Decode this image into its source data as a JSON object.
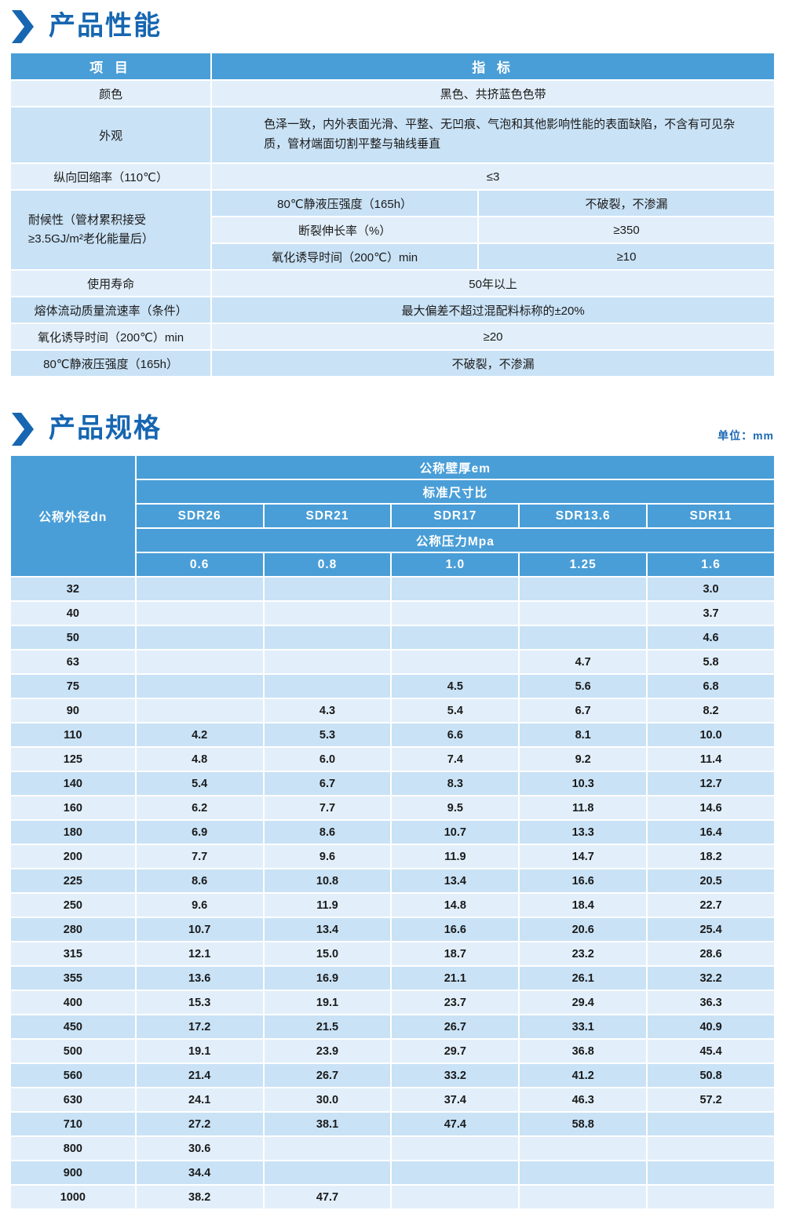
{
  "page": {
    "section1_title": "产品性能",
    "section2_title": "产品规格",
    "unit_label": "单位：mm"
  },
  "colors": {
    "title_blue": "#1666b1",
    "header_blue": "#4a9ed7",
    "row_dark": "#c9e2f6",
    "row_light": "#e2effa"
  },
  "perf_table": {
    "col_item": "项 目",
    "col_spec": "指 标",
    "rows_top": [
      {
        "label": "颜色",
        "value": "黑色、共挤蓝色色带"
      },
      {
        "label": "外观",
        "value": "色泽一致，内外表面光滑、平整、无凹痕、气泡和其他影响性能的表面缺陷，不含有可见杂质，管材端面切割平整与轴线垂直"
      },
      {
        "label": "纵向回缩率（110℃）",
        "value": "≤3"
      }
    ],
    "weather_group": {
      "label": "耐候性（管材累积接受≥3.5GJ/m²老化能量后）",
      "sub_rows": [
        {
          "label": "80℃静液压强度（165h）",
          "value": "不破裂，不渗漏"
        },
        {
          "label": "断裂伸长率（%）",
          "value": "≥350"
        },
        {
          "label": "氧化诱导时间（200℃）min",
          "value": "≥10"
        }
      ]
    },
    "rows_bottom": [
      {
        "label": "使用寿命",
        "value": "50年以上"
      },
      {
        "label": "熔体流动质量流速率（条件）",
        "value": "最大偏差不超过混配料标称的±20%"
      },
      {
        "label": "氧化诱导时间（200℃）min",
        "value": "≥20"
      },
      {
        "label": "80℃静液压强度（165h）",
        "value": "不破裂，不渗漏"
      }
    ]
  },
  "spec_table": {
    "corner_header": "公称外径dn",
    "wall_thickness_header": "公称壁厚em",
    "sdr_header": "标准尺寸比",
    "sdr_labels": [
      "SDR26",
      "SDR21",
      "SDR17",
      "SDR13.6",
      "SDR11"
    ],
    "pressure_header": "公称压力Mpa",
    "pressure_values": [
      "0.6",
      "0.8",
      "1.0",
      "1.25",
      "1.6"
    ],
    "rows": [
      {
        "dn": "32",
        "values": [
          "",
          "",
          "",
          "",
          "3.0"
        ]
      },
      {
        "dn": "40",
        "values": [
          "",
          "",
          "",
          "",
          "3.7"
        ]
      },
      {
        "dn": "50",
        "values": [
          "",
          "",
          "",
          "",
          "4.6"
        ]
      },
      {
        "dn": "63",
        "values": [
          "",
          "",
          "",
          "4.7",
          "5.8"
        ]
      },
      {
        "dn": "75",
        "values": [
          "",
          "",
          "4.5",
          "5.6",
          "6.8"
        ]
      },
      {
        "dn": "90",
        "values": [
          "",
          "4.3",
          "5.4",
          "6.7",
          "8.2"
        ]
      },
      {
        "dn": "110",
        "values": [
          "4.2",
          "5.3",
          "6.6",
          "8.1",
          "10.0"
        ]
      },
      {
        "dn": "125",
        "values": [
          "4.8",
          "6.0",
          "7.4",
          "9.2",
          "11.4"
        ]
      },
      {
        "dn": "140",
        "values": [
          "5.4",
          "6.7",
          "8.3",
          "10.3",
          "12.7"
        ]
      },
      {
        "dn": "160",
        "values": [
          "6.2",
          "7.7",
          "9.5",
          "11.8",
          "14.6"
        ]
      },
      {
        "dn": "180",
        "values": [
          "6.9",
          "8.6",
          "10.7",
          "13.3",
          "16.4"
        ]
      },
      {
        "dn": "200",
        "values": [
          "7.7",
          "9.6",
          "11.9",
          "14.7",
          "18.2"
        ]
      },
      {
        "dn": "225",
        "values": [
          "8.6",
          "10.8",
          "13.4",
          "16.6",
          "20.5"
        ]
      },
      {
        "dn": "250",
        "values": [
          "9.6",
          "11.9",
          "14.8",
          "18.4",
          "22.7"
        ]
      },
      {
        "dn": "280",
        "values": [
          "10.7",
          "13.4",
          "16.6",
          "20.6",
          "25.4"
        ]
      },
      {
        "dn": "315",
        "values": [
          "12.1",
          "15.0",
          "18.7",
          "23.2",
          "28.6"
        ]
      },
      {
        "dn": "355",
        "values": [
          "13.6",
          "16.9",
          "21.1",
          "26.1",
          "32.2"
        ]
      },
      {
        "dn": "400",
        "values": [
          "15.3",
          "19.1",
          "23.7",
          "29.4",
          "36.3"
        ]
      },
      {
        "dn": "450",
        "values": [
          "17.2",
          "21.5",
          "26.7",
          "33.1",
          "40.9"
        ]
      },
      {
        "dn": "500",
        "values": [
          "19.1",
          "23.9",
          "29.7",
          "36.8",
          "45.4"
        ]
      },
      {
        "dn": "560",
        "values": [
          "21.4",
          "26.7",
          "33.2",
          "41.2",
          "50.8"
        ]
      },
      {
        "dn": "630",
        "values": [
          "24.1",
          "30.0",
          "37.4",
          "46.3",
          "57.2"
        ]
      },
      {
        "dn": "710",
        "values": [
          "27.2",
          "38.1",
          "47.4",
          "58.8",
          ""
        ]
      },
      {
        "dn": "800",
        "values": [
          "30.6",
          "",
          "",
          "",
          ""
        ]
      },
      {
        "dn": "900",
        "values": [
          "34.4",
          "",
          "",
          "",
          ""
        ]
      },
      {
        "dn": "1000",
        "values": [
          "38.2",
          "47.7",
          "",
          "",
          ""
        ]
      }
    ]
  }
}
